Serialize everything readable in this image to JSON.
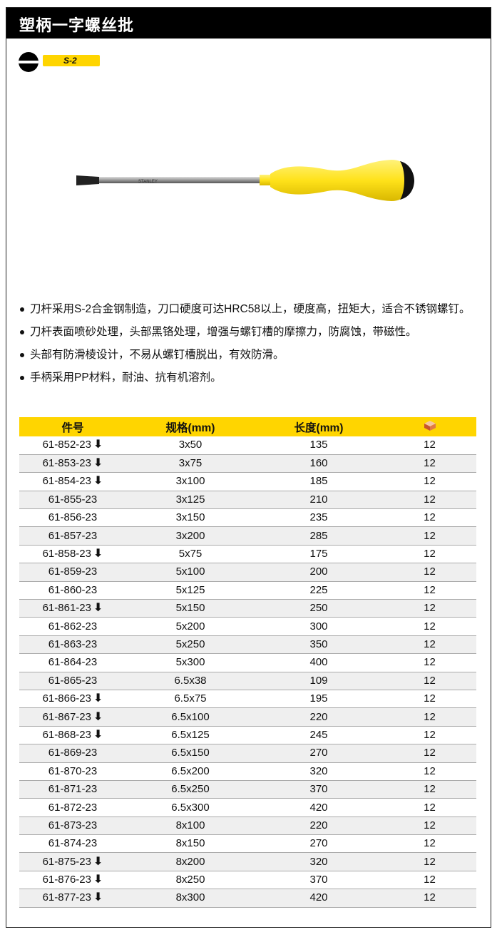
{
  "title": "塑柄一字螺丝批",
  "badge": "S-2",
  "product_image": {
    "icon": "slotted-screwdriver",
    "brand_text": "STANLEY",
    "handle_color": "#ffe21a"
  },
  "bullets": [
    "刀杆采用S-2合金钢制造，刀口硬度可达HRC58以上，硬度高，扭矩大，适合不锈钢螺钉。",
    "刀杆表面喷砂处理，头部黑铬处理，增强与螺钉槽的摩擦力，防腐蚀，带磁性。",
    "头部有防滑棱设计，不易从螺钉槽脱出，有效防滑。",
    "手柄采用PP材料，耐油、抗有机溶剂。"
  ],
  "table": {
    "headers": [
      "件号",
      "规格(mm)",
      "长度(mm)"
    ],
    "pack_icon": "box-icon",
    "accent": "#ffd500",
    "rows": [
      {
        "part": "61-852-23",
        "arrow": true,
        "spec": "3x50",
        "length": "135",
        "qty": "12"
      },
      {
        "part": "61-853-23",
        "arrow": true,
        "spec": "3x75",
        "length": "160",
        "qty": "12"
      },
      {
        "part": "61-854-23",
        "arrow": true,
        "spec": "3x100",
        "length": "185",
        "qty": "12"
      },
      {
        "part": "61-855-23",
        "arrow": false,
        "spec": "3x125",
        "length": "210",
        "qty": "12"
      },
      {
        "part": "61-856-23",
        "arrow": false,
        "spec": "3x150",
        "length": "235",
        "qty": "12"
      },
      {
        "part": "61-857-23",
        "arrow": false,
        "spec": "3x200",
        "length": "285",
        "qty": "12"
      },
      {
        "part": "61-858-23",
        "arrow": true,
        "spec": "5x75",
        "length": "175",
        "qty": "12"
      },
      {
        "part": "61-859-23",
        "arrow": false,
        "spec": "5x100",
        "length": "200",
        "qty": "12"
      },
      {
        "part": "61-860-23",
        "arrow": false,
        "spec": "5x125",
        "length": "225",
        "qty": "12"
      },
      {
        "part": "61-861-23",
        "arrow": true,
        "spec": "5x150",
        "length": "250",
        "qty": "12"
      },
      {
        "part": "61-862-23",
        "arrow": false,
        "spec": "5x200",
        "length": "300",
        "qty": "12"
      },
      {
        "part": "61-863-23",
        "arrow": false,
        "spec": "5x250",
        "length": "350",
        "qty": "12"
      },
      {
        "part": "61-864-23",
        "arrow": false,
        "spec": "5x300",
        "length": "400",
        "qty": "12"
      },
      {
        "part": "61-865-23",
        "arrow": false,
        "spec": "6.5x38",
        "length": "109",
        "qty": "12"
      },
      {
        "part": "61-866-23",
        "arrow": true,
        "spec": "6.5x75",
        "length": "195",
        "qty": "12"
      },
      {
        "part": "61-867-23",
        "arrow": true,
        "spec": "6.5x100",
        "length": "220",
        "qty": "12"
      },
      {
        "part": "61-868-23",
        "arrow": true,
        "spec": "6.5x125",
        "length": "245",
        "qty": "12"
      },
      {
        "part": "61-869-23",
        "arrow": false,
        "spec": "6.5x150",
        "length": "270",
        "qty": "12"
      },
      {
        "part": "61-870-23",
        "arrow": false,
        "spec": "6.5x200",
        "length": "320",
        "qty": "12"
      },
      {
        "part": "61-871-23",
        "arrow": false,
        "spec": "6.5x250",
        "length": "370",
        "qty": "12"
      },
      {
        "part": "61-872-23",
        "arrow": false,
        "spec": "6.5x300",
        "length": "420",
        "qty": "12"
      },
      {
        "part": "61-873-23",
        "arrow": false,
        "spec": "8x100",
        "length": "220",
        "qty": "12"
      },
      {
        "part": "61-874-23",
        "arrow": false,
        "spec": "8x150",
        "length": "270",
        "qty": "12"
      },
      {
        "part": "61-875-23",
        "arrow": true,
        "spec": "8x200",
        "length": "320",
        "qty": "12"
      },
      {
        "part": "61-876-23",
        "arrow": true,
        "spec": "8x250",
        "length": "370",
        "qty": "12"
      },
      {
        "part": "61-877-23",
        "arrow": true,
        "spec": "8x300",
        "length": "420",
        "qty": "12"
      }
    ]
  }
}
